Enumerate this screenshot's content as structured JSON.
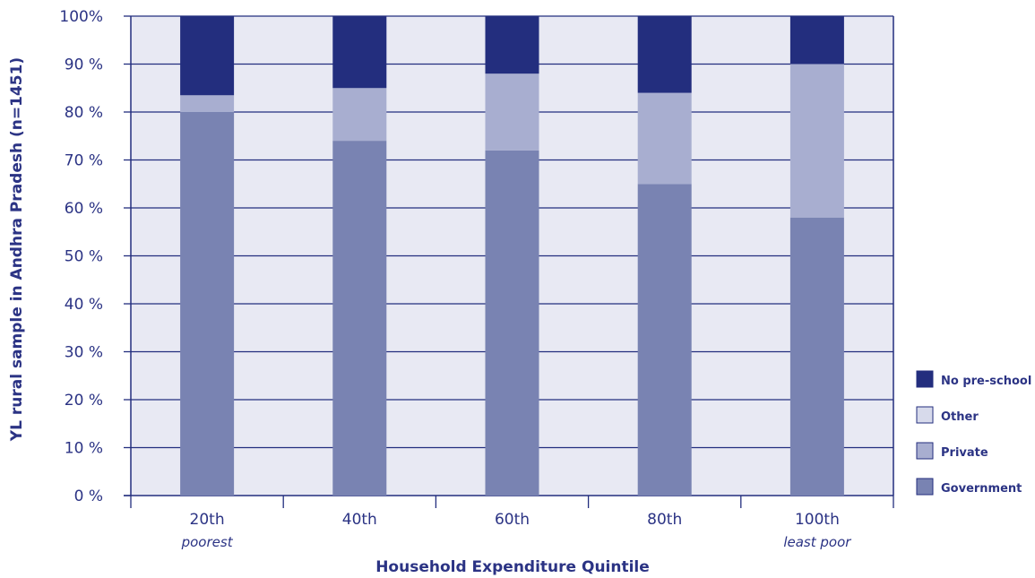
{
  "chart_data": {
    "type": "bar",
    "stacked": true,
    "categories": [
      "20th",
      "40th",
      "60th",
      "80th",
      "100th"
    ],
    "category_sublabels": [
      "poorest",
      "",
      "",
      "",
      "least poor"
    ],
    "series": [
      {
        "name": "Government",
        "values": [
          80,
          74,
          72,
          65,
          58
        ]
      },
      {
        "name": "Private",
        "values": [
          3.5,
          11,
          16,
          19,
          32
        ]
      },
      {
        "name": "Other",
        "values": [
          0,
          0,
          0,
          0,
          0
        ]
      },
      {
        "name": "No pre-school",
        "values": [
          16.5,
          15,
          12,
          16,
          10
        ]
      }
    ],
    "legend_order": [
      "No pre-school",
      "Other",
      "Private",
      "Government"
    ],
    "legend_position": "right",
    "xlabel": "Household Expenditure Quintile",
    "ylabel": "YL rural sample in Andhra Pradesh (n=1451)",
    "ylim": [
      0,
      100
    ],
    "yticks": [
      0,
      10,
      20,
      30,
      40,
      50,
      60,
      70,
      80,
      90,
      100
    ],
    "ytick_labels": [
      "0 %",
      "10 %",
      "20 %",
      "30 %",
      "40 %",
      "50 %",
      "60 %",
      "70 %",
      "80 %",
      "90 %",
      "100%"
    ],
    "grid": true,
    "colors": {
      "Government": "#7983b2",
      "Private": "#a8aed0",
      "Other": "#d7daeb",
      "No pre-school": "#232e7e",
      "plot_background": "#e8e9f3",
      "axis": "#232e7e",
      "text": "#2b3384"
    }
  }
}
